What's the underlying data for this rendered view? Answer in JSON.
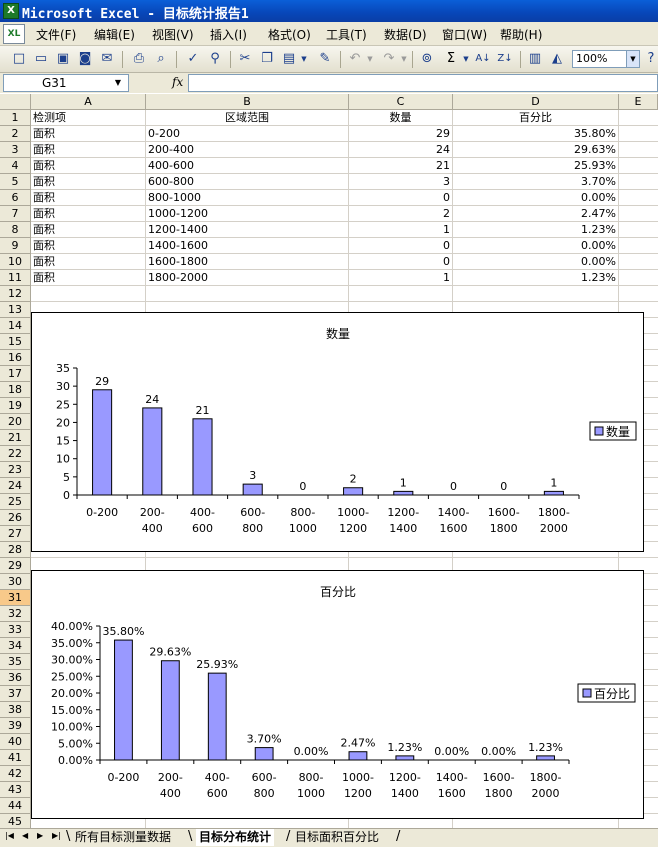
{
  "window": {
    "title": "Microsoft Excel - 目标统计报告1",
    "app_icon": "excel-icon"
  },
  "menu": [
    "文件(F)",
    "编辑(E)",
    "视图(V)",
    "插入(I)",
    "格式(O)",
    "工具(T)",
    "数据(D)",
    "窗口(W)",
    "帮助(H)"
  ],
  "toolbar": {
    "zoom": "100%"
  },
  "formula_bar": {
    "name_box": "G31",
    "fx_label": "fx",
    "formula": ""
  },
  "columns": [
    "A",
    "B",
    "C",
    "D",
    "E"
  ],
  "rows": [
    "1",
    "2",
    "3",
    "4",
    "5",
    "6",
    "7",
    "8",
    "9",
    "10",
    "11",
    "12",
    "13",
    "14",
    "15",
    "16",
    "17",
    "18",
    "19",
    "20",
    "21",
    "22",
    "23",
    "24",
    "25",
    "26",
    "27",
    "28",
    "29",
    "30",
    "31",
    "32",
    "33",
    "34",
    "35",
    "36",
    "37",
    "38",
    "39",
    "40",
    "41",
    "42",
    "43",
    "44",
    "45"
  ],
  "active_row": "31",
  "table": {
    "headers": [
      "检测项",
      "区域范围",
      "数量",
      "百分比"
    ],
    "rows": [
      [
        "面积",
        "0-200",
        "29",
        "35.80%"
      ],
      [
        "面积",
        "200-400",
        "24",
        "29.63%"
      ],
      [
        "面积",
        "400-600",
        "21",
        "25.93%"
      ],
      [
        "面积",
        "600-800",
        "3",
        "3.70%"
      ],
      [
        "面积",
        "800-1000",
        "0",
        "0.00%"
      ],
      [
        "面积",
        "1000-1200",
        "2",
        "2.47%"
      ],
      [
        "面积",
        "1200-1400",
        "1",
        "1.23%"
      ],
      [
        "面积",
        "1400-1600",
        "0",
        "0.00%"
      ],
      [
        "面积",
        "1600-1800",
        "0",
        "0.00%"
      ],
      [
        "面积",
        "1800-2000",
        "1",
        "1.23%"
      ]
    ]
  },
  "chart_data": [
    {
      "type": "bar",
      "title": "数量",
      "categories": [
        [
          "0-200"
        ],
        [
          "200-",
          "400"
        ],
        [
          "400-",
          "600"
        ],
        [
          "600-",
          "800"
        ],
        [
          "800-",
          "1000"
        ],
        [
          "1000-",
          "1200"
        ],
        [
          "1200-",
          "1400"
        ],
        [
          "1400-",
          "1600"
        ],
        [
          "1600-",
          "1800"
        ],
        [
          "1800-",
          "2000"
        ]
      ],
      "series": [
        {
          "name": "数量",
          "values": [
            29,
            24,
            21,
            3,
            0,
            2,
            1,
            0,
            0,
            1
          ]
        }
      ],
      "data_labels": [
        "29",
        "24",
        "21",
        "3",
        "0",
        "2",
        "1",
        "0",
        "0",
        "1"
      ],
      "y_ticks": [
        "0",
        "5",
        "10",
        "15",
        "20",
        "25",
        "30",
        "35"
      ],
      "ylim": [
        0,
        35
      ],
      "legend": "right",
      "bar_color": "#9999ff"
    },
    {
      "type": "bar",
      "title": "百分比",
      "categories": [
        [
          "0-200"
        ],
        [
          "200-",
          "400"
        ],
        [
          "400-",
          "600"
        ],
        [
          "600-",
          "800"
        ],
        [
          "800-",
          "1000"
        ],
        [
          "1000-",
          "1200"
        ],
        [
          "1200-",
          "1400"
        ],
        [
          "1400-",
          "1600"
        ],
        [
          "1600-",
          "1800"
        ],
        [
          "1800-",
          "2000"
        ]
      ],
      "series": [
        {
          "name": "百分比",
          "values": [
            35.8,
            29.63,
            25.93,
            3.7,
            0.0,
            2.47,
            1.23,
            0.0,
            0.0,
            1.23
          ]
        }
      ],
      "data_labels": [
        "35.80%",
        "29.63%",
        "25.93%",
        "3.70%",
        "0.00%",
        "2.47%",
        "1.23%",
        "0.00%",
        "0.00%",
        "1.23%"
      ],
      "y_ticks": [
        "0.00%",
        "5.00%",
        "10.00%",
        "15.00%",
        "20.00%",
        "25.00%",
        "30.00%",
        "35.00%",
        "40.00%"
      ],
      "ylim": [
        0,
        40
      ],
      "legend": "right",
      "bar_color": "#9999ff"
    }
  ],
  "sheet_tabs": [
    {
      "label": "所有目标测量数据",
      "active": false
    },
    {
      "label": "目标分布统计",
      "active": true
    },
    {
      "label": "目标面积百分比",
      "active": false
    }
  ]
}
